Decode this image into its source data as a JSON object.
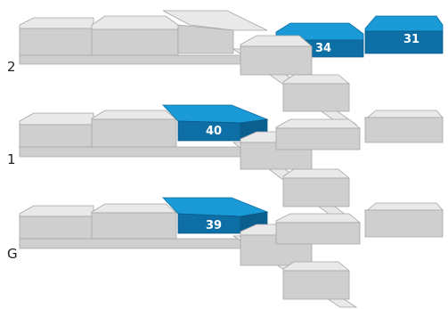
{
  "floors": [
    {
      "label": "2",
      "highlighted_rooms": [
        "34",
        "31"
      ]
    },
    {
      "label": "1",
      "highlighted_rooms": [
        "40"
      ]
    },
    {
      "label": "G",
      "highlighted_rooms": [
        "39"
      ]
    }
  ],
  "colors": {
    "block_top": "#e9e9e9",
    "block_front": "#cfcfcf",
    "block_side": "#bdbdbd",
    "block_edge": "#9a9a9a",
    "highlight_top": "#1a9ad6",
    "highlight_front": "#0d6fa6",
    "highlight_side": "#0b5f8f",
    "label_text": "#222222",
    "room_text": "#ffffff"
  }
}
